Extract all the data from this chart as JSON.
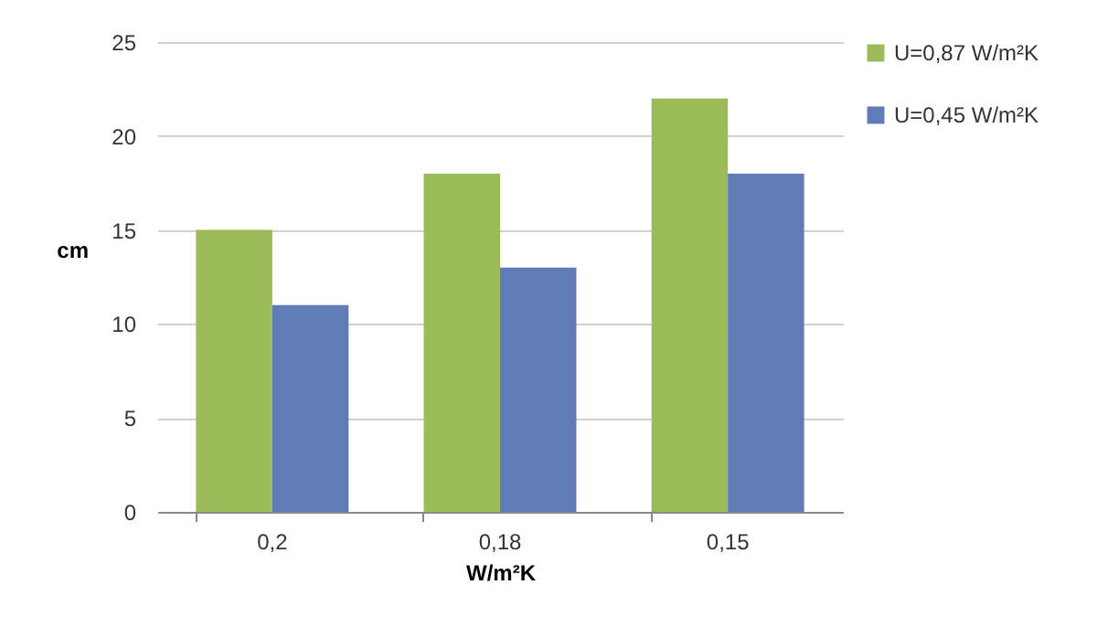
{
  "chart_data": {
    "type": "bar",
    "xlabel": "W/m²K",
    "ylabel": "cm",
    "categories": [
      "0,2",
      "0,18",
      "0,15"
    ],
    "series": [
      {
        "name": "U=0,87 W/m²K",
        "color": "#9bbb59",
        "values": [
          15,
          18,
          22
        ]
      },
      {
        "name": "U=0,45 W/m²K",
        "color": "#5f7bb8",
        "values": [
          11,
          13,
          18
        ]
      }
    ],
    "ylim": [
      0,
      25
    ],
    "yticks": [
      0,
      5,
      10,
      15,
      20,
      25
    ],
    "grid": "y",
    "legend": "right"
  }
}
